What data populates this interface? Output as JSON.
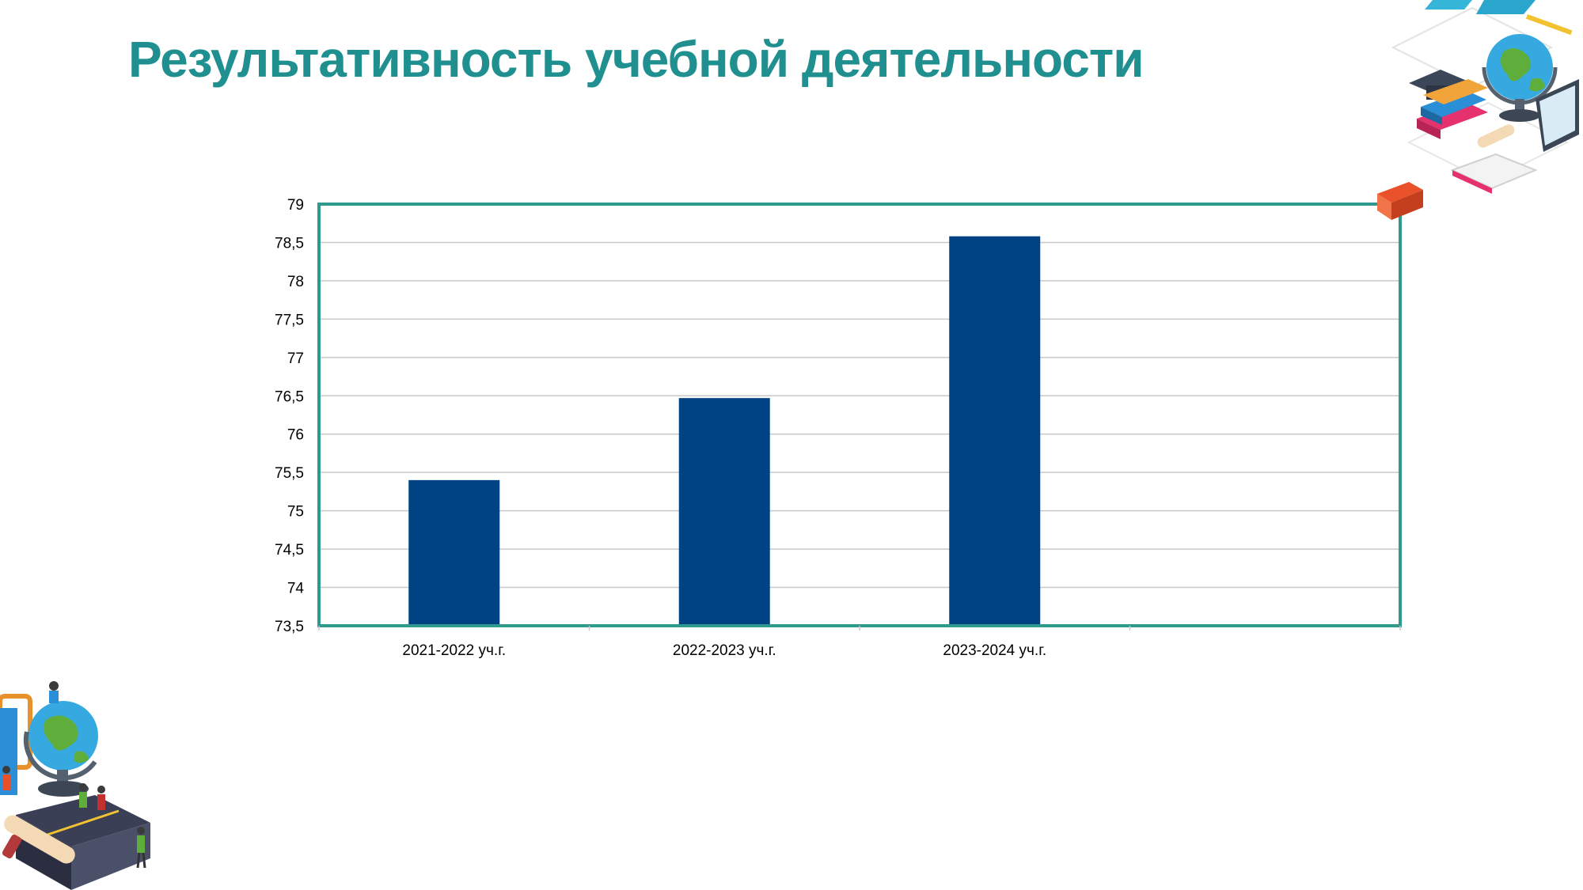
{
  "slide": {
    "title": "Результативность учебной деятельности"
  },
  "colors": {
    "title": "#1f8f8f",
    "bar": "#004385",
    "plot_border": "#2e9a8e",
    "grid": "#c8c8c8"
  },
  "chart_data": {
    "type": "bar",
    "categories": [
      "2021-2022 уч.г.",
      "2022-2023 уч.г.",
      "2023-2024 уч.г.",
      ""
    ],
    "values": [
      75.4,
      76.47,
      78.58,
      null
    ],
    "y_ticks": [
      "73,5",
      "74",
      "74,5",
      "75",
      "75,5",
      "76",
      "76,5",
      "77",
      "77,5",
      "78",
      "78,5",
      "79"
    ],
    "ylim": [
      73.5,
      79
    ],
    "title": "",
    "xlabel": "",
    "ylabel": "",
    "grid": true,
    "legend": "none"
  },
  "decorations": {
    "top_right": "education-illustration",
    "bottom_left": "globe-books-illustration"
  }
}
